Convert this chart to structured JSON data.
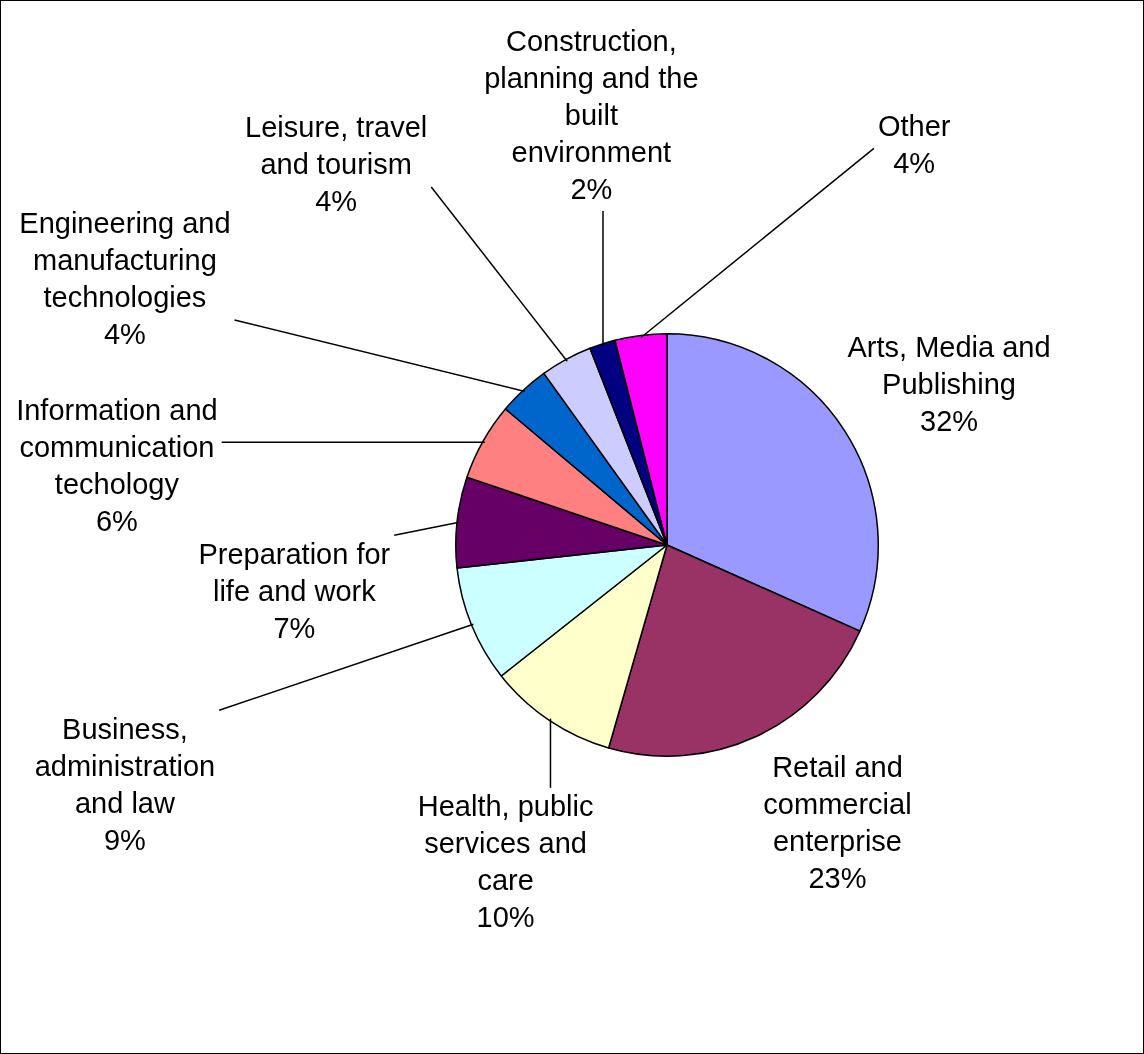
{
  "chart_data": {
    "type": "pie",
    "categories": [
      "Arts, Media and Publishing",
      "Retail and commercial enterprise",
      "Health, public services and care",
      "Business, administration and law",
      "Preparation for life and work",
      "Information and communication techology",
      "Engineering and manufacturing technologies",
      "Leisure, travel and tourism",
      "Construction, planning and the built environment",
      "Other"
    ],
    "values": [
      32,
      23,
      10,
      9,
      7,
      6,
      4,
      4,
      2,
      4
    ],
    "value_labels": [
      "32%",
      "23%",
      "10%",
      "9%",
      "7%",
      "6%",
      "4%",
      "4%",
      "2%",
      "4%"
    ],
    "colors": [
      "#9999ff",
      "#993366",
      "#ffffcc",
      "#ccffff",
      "#660066",
      "#ff8080",
      "#0066cc",
      "#ccccff",
      "#000080",
      "#ff00ff"
    ],
    "legend": false
  }
}
